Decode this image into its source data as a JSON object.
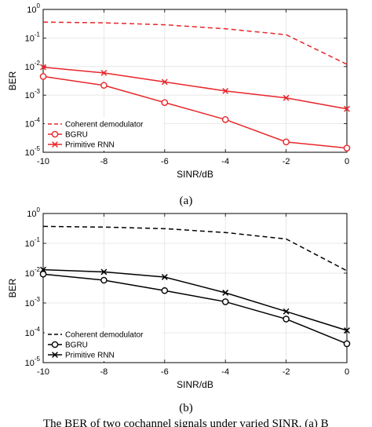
{
  "chart_data": [
    {
      "type": "line",
      "panel_label": "(a)",
      "color": "#e8262a",
      "xlabel": "SINR/dB",
      "ylabel": "BER",
      "x": [
        -10,
        -8,
        -6,
        -4,
        -2,
        0
      ],
      "xlim": [
        -10,
        0
      ],
      "ylim": [
        1e-05,
        1
      ],
      "yscale": "log",
      "grid": true,
      "legend_position": "bottom-left",
      "series": [
        {
          "name": "Coherent demodulator",
          "style": "dashed",
          "marker": "none",
          "values": [
            0.36,
            0.34,
            0.29,
            0.21,
            0.13,
            0.012
          ]
        },
        {
          "name": "BGRU",
          "style": "solid",
          "marker": "circle",
          "values": [
            0.0045,
            0.0022,
            0.00055,
            0.00014,
            2.3e-05,
            1.4e-05
          ]
        },
        {
          "name": "Primitive RNN",
          "style": "solid",
          "marker": "cross",
          "values": [
            0.0095,
            0.006,
            0.0029,
            0.0014,
            0.0008,
            0.00033
          ]
        }
      ],
      "xticks": [
        "-10",
        "-8",
        "-6",
        "-4",
        "-2",
        "0"
      ],
      "yticks": [
        {
          "base": "10",
          "exp": "-5"
        },
        {
          "base": "10",
          "exp": "-4"
        },
        {
          "base": "10",
          "exp": "-3"
        },
        {
          "base": "10",
          "exp": "-2"
        },
        {
          "base": "10",
          "exp": "-1"
        },
        {
          "base": "10",
          "exp": "0"
        }
      ]
    },
    {
      "type": "line",
      "panel_label": "(b)",
      "color": "#000000",
      "xlabel": "SINR/dB",
      "ylabel": "BER",
      "x": [
        -10,
        -8,
        -6,
        -4,
        -2,
        0
      ],
      "xlim": [
        -10,
        0
      ],
      "ylim": [
        1e-05,
        1
      ],
      "yscale": "log",
      "grid": true,
      "legend_position": "bottom-left",
      "series": [
        {
          "name": "Coherent demodulator",
          "style": "dashed",
          "marker": "none",
          "values": [
            0.37,
            0.35,
            0.31,
            0.23,
            0.14,
            0.012
          ]
        },
        {
          "name": "BGRU",
          "style": "solid",
          "marker": "circle",
          "values": [
            0.0093,
            0.0058,
            0.0026,
            0.0011,
            0.00029,
            4.3e-05
          ]
        },
        {
          "name": "Primitive RNN",
          "style": "solid",
          "marker": "cross",
          "values": [
            0.013,
            0.011,
            0.0074,
            0.0022,
            0.00052,
            0.00012
          ]
        }
      ],
      "xticks": [
        "-10",
        "-8",
        "-6",
        "-4",
        "-2",
        "0"
      ],
      "yticks": [
        {
          "base": "10",
          "exp": "-5"
        },
        {
          "base": "10",
          "exp": "-4"
        },
        {
          "base": "10",
          "exp": "-3"
        },
        {
          "base": "10",
          "exp": "-2"
        },
        {
          "base": "10",
          "exp": "-1"
        },
        {
          "base": "10",
          "exp": "0"
        }
      ]
    }
  ],
  "caption": {
    "text": "The BER of two cochannel signals under varied SINR. (a) B"
  }
}
